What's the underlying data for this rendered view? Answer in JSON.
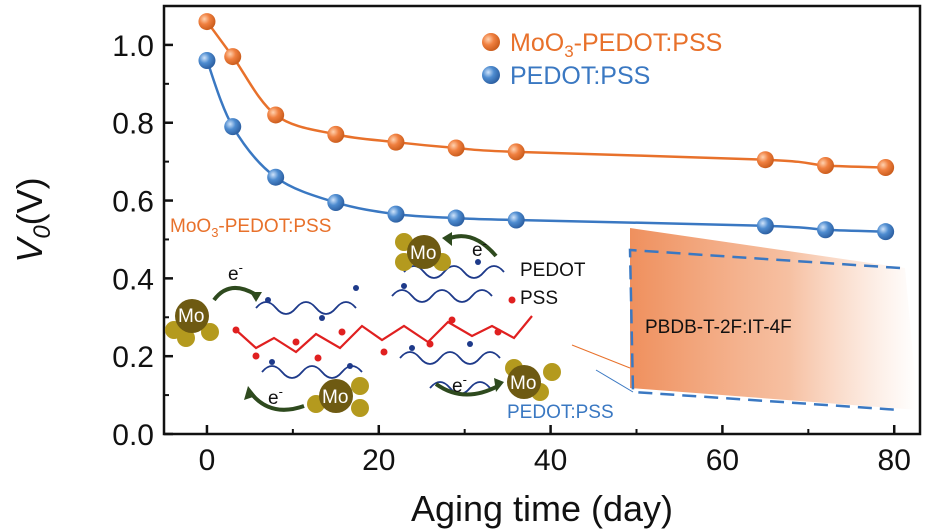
{
  "chart_data": {
    "type": "scatter",
    "title": "",
    "xlabel": "Aging time (day)",
    "ylabel": "V",
    "ylabel_sub": "0",
    "ylabel_unit": "(V)",
    "xlim": [
      -5,
      83
    ],
    "ylim": [
      0,
      1.1
    ],
    "xticks": [
      0,
      20,
      40,
      60,
      80
    ],
    "yticks": [
      0.0,
      0.2,
      0.4,
      0.6,
      0.8,
      1.0
    ],
    "xtick_labels": [
      "0",
      "20",
      "40",
      "60",
      "80"
    ],
    "ytick_labels": [
      "0.0",
      "0.2",
      "0.4",
      "0.6",
      "0.8",
      "1.0"
    ],
    "grid": false,
    "legend_position": "top-right",
    "series": [
      {
        "name_main": "MoO",
        "name_sub": "3",
        "name_rest": "-PEDOT:PSS",
        "color": "#E8712B",
        "x": [
          0,
          3,
          8,
          15,
          22,
          29,
          36,
          65,
          72,
          79
        ],
        "y": [
          1.06,
          0.97,
          0.82,
          0.77,
          0.75,
          0.735,
          0.725,
          0.705,
          0.69,
          0.685
        ]
      },
      {
        "name_main": "PEDOT:PSS",
        "name_sub": "",
        "name_rest": "",
        "color": "#3A78C2",
        "x": [
          0,
          3,
          8,
          15,
          22,
          29,
          36,
          65,
          72,
          79
        ],
        "y": [
          0.96,
          0.79,
          0.66,
          0.595,
          0.565,
          0.555,
          0.55,
          0.535,
          0.525,
          0.52
        ]
      }
    ]
  },
  "inset": {
    "label_moo3_main": "MoO",
    "label_moo3_sub": "3",
    "label_moo3_rest": "-PEDOT:PSS",
    "label_pedot": "PEDOT",
    "label_pss": "PSS",
    "label_pedotpss": "PEDOT:PSS",
    "label_layer": "PBDB-T-2F:IT-4F",
    "mo_label": "Mo",
    "electron_label": "e",
    "electron_sup": "-",
    "colors": {
      "orange": "#E8712B",
      "blue": "#3A78C2",
      "mo_dark": "#6E5A12",
      "mo_light": "#B49A1E",
      "pss_red": "#E02020",
      "pedot_navy": "#1E3A8A",
      "arrow_green": "#2E4A1E"
    }
  }
}
